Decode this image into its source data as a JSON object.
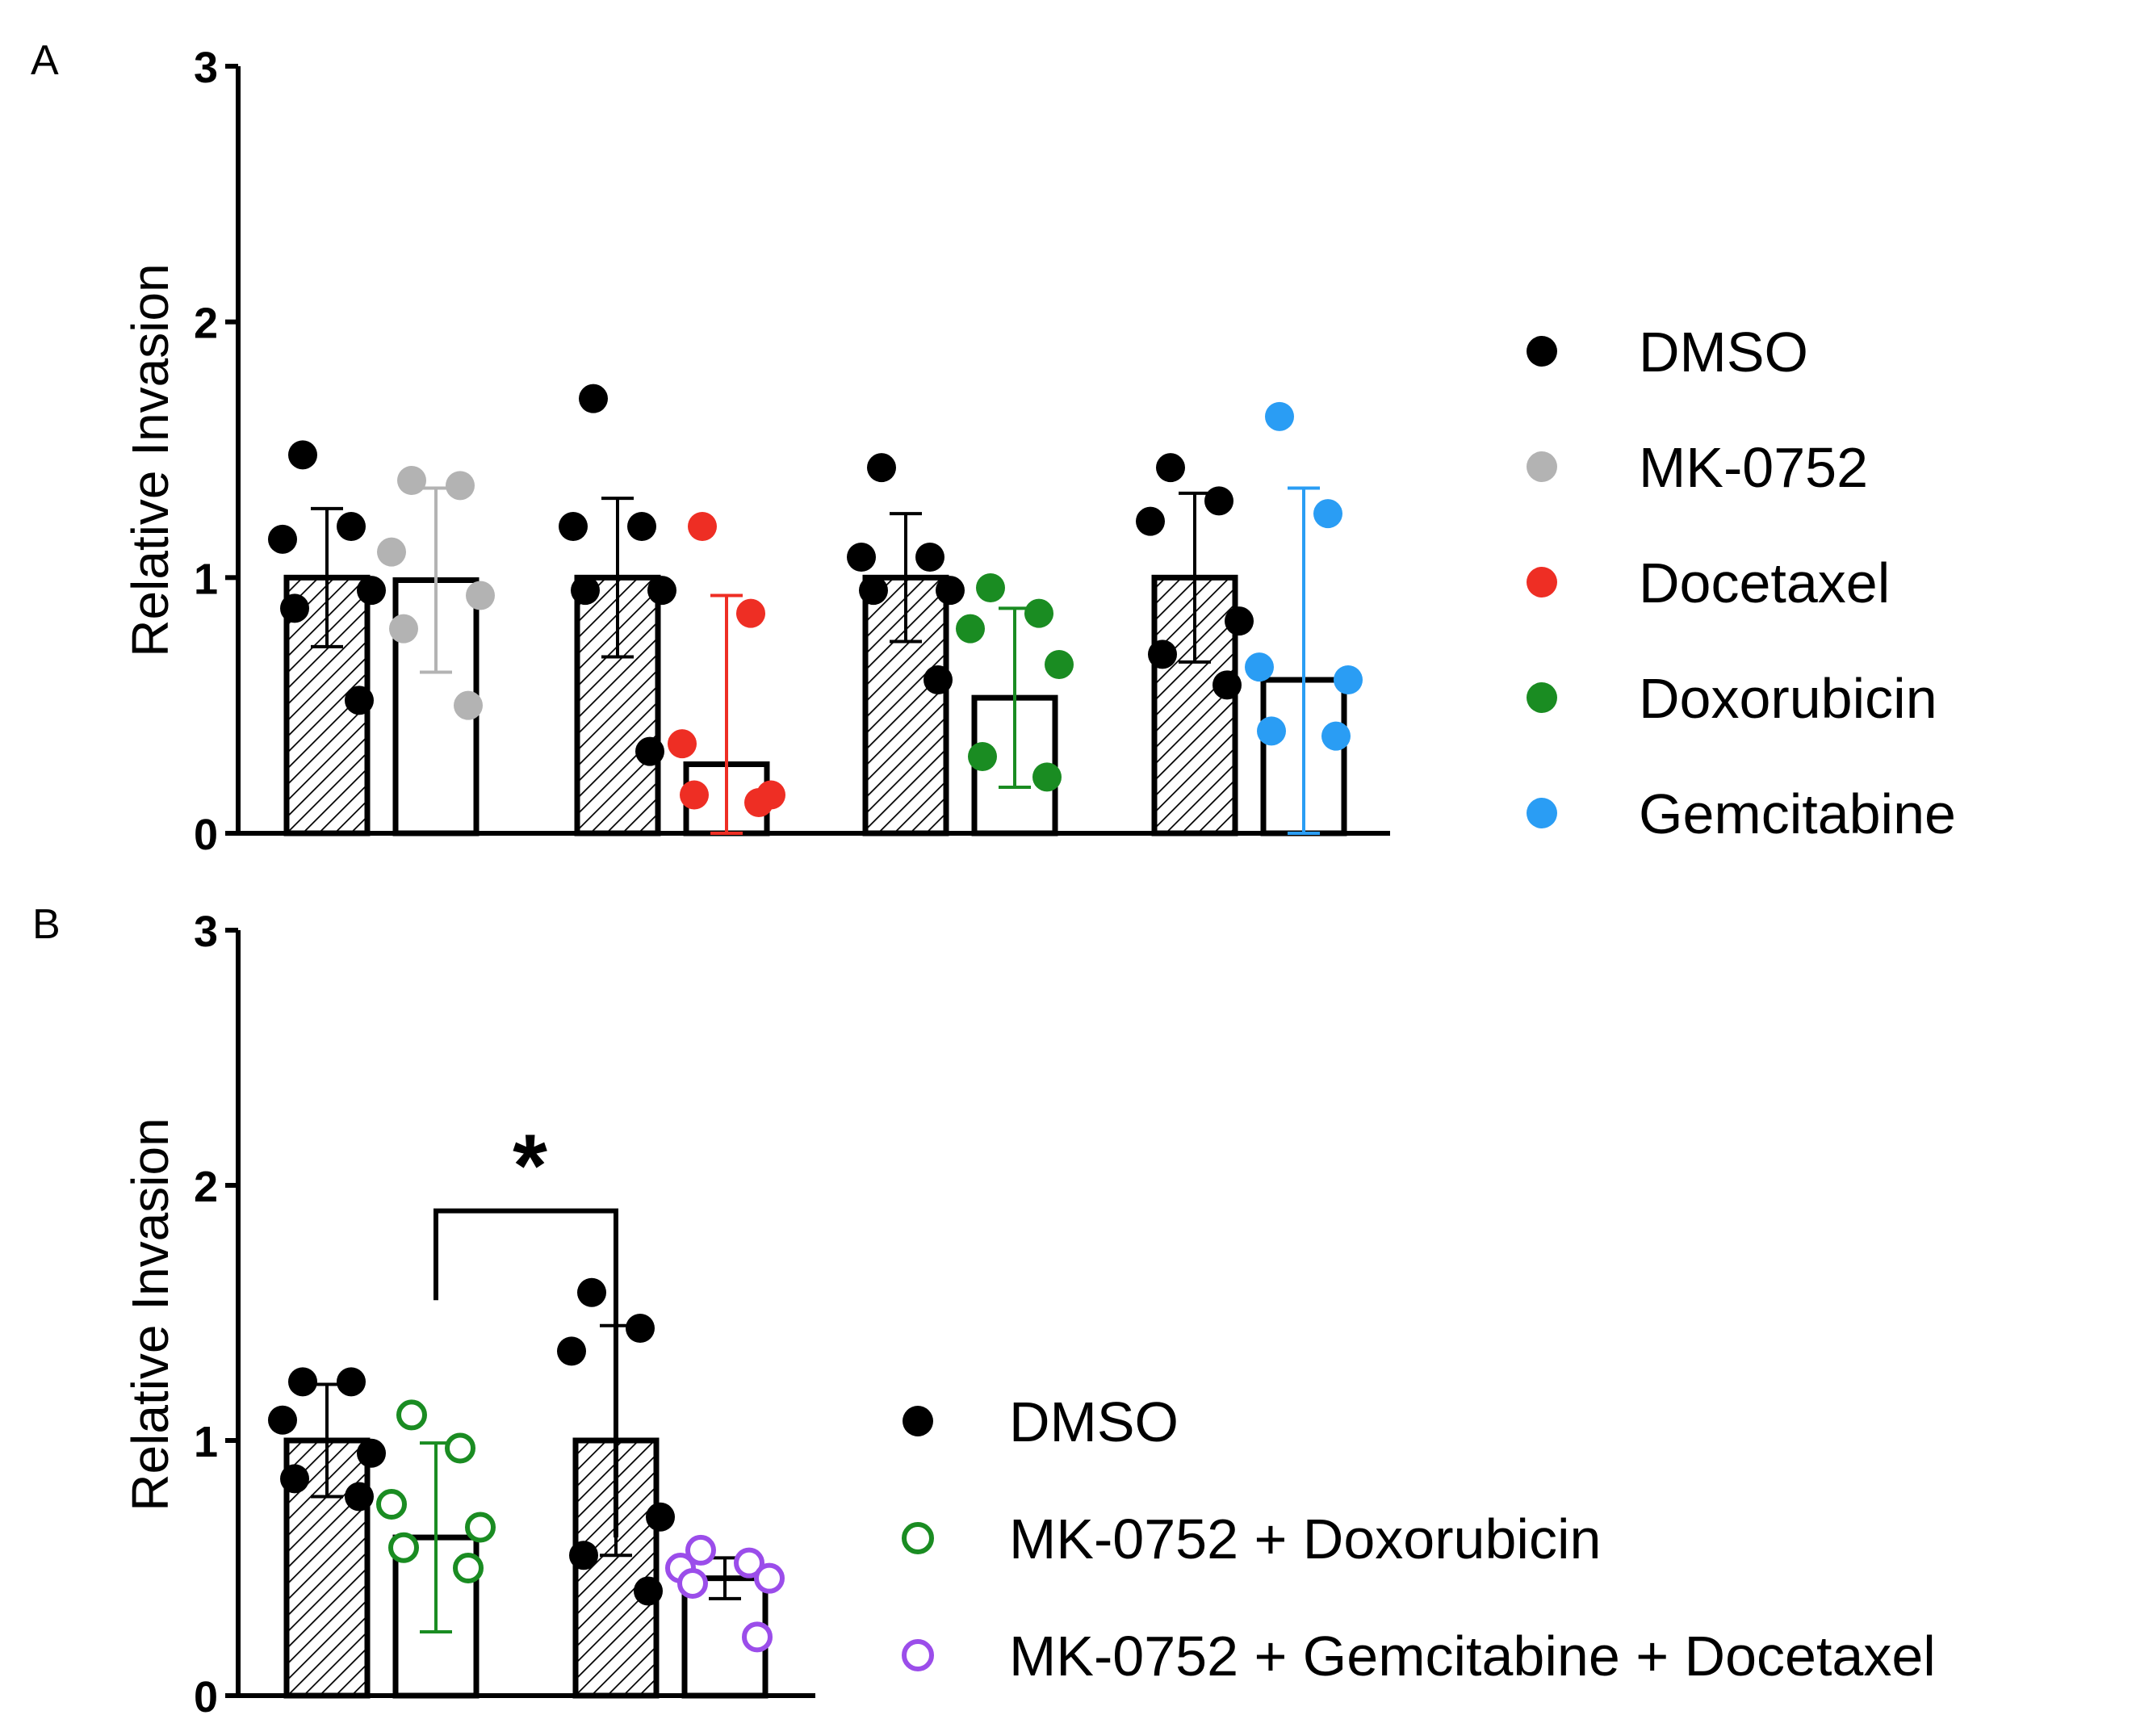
{
  "chart_data": [
    {
      "type": "bar",
      "panel": "A",
      "ylabel": "Relative Invasion",
      "xlabel": "",
      "ylim": [
        0,
        3
      ],
      "yticks": [
        0,
        1,
        2,
        3
      ],
      "legend_position": "right",
      "legend": [
        {
          "label": "DMSO",
          "color": "#000000",
          "marker": "filled-circle"
        },
        {
          "label": "MK-0752",
          "color": "#b3b3b3",
          "marker": "filled-circle"
        },
        {
          "label": "Docetaxel",
          "color": "#ee2e24",
          "marker": "filled-circle"
        },
        {
          "label": "Doxorubicin",
          "color": "#1a8c22",
          "marker": "filled-circle"
        },
        {
          "label": "Gemcitabine",
          "color": "#2a9df4",
          "marker": "filled-circle"
        }
      ],
      "bars": [
        {
          "series": "DMSO",
          "group": 1,
          "mean": 1.0,
          "sd": 0.27,
          "fill": "hatched",
          "color": "#000000",
          "points": [
            1.48,
            1.2,
            1.15,
            0.95,
            0.88,
            0.52
          ]
        },
        {
          "series": "MK-0752",
          "group": 1,
          "mean": 0.99,
          "sd": 0.36,
          "fill": "open",
          "color": "#b3b3b3",
          "points": [
            1.38,
            1.36,
            1.1,
            0.93,
            0.8,
            0.5
          ]
        },
        {
          "series": "DMSO",
          "group": 2,
          "mean": 1.0,
          "sd": 0.31,
          "fill": "hatched",
          "color": "#000000",
          "points": [
            1.7,
            1.2,
            1.2,
            0.95,
            0.95,
            0.32
          ]
        },
        {
          "series": "Docetaxel",
          "group": 2,
          "mean": 0.27,
          "sd": 0.66,
          "fill": "open",
          "color": "#ee2e24",
          "points": [
            1.2,
            0.86,
            0.35,
            0.15,
            0.15,
            0.12
          ]
        },
        {
          "series": "DMSO",
          "group": 3,
          "mean": 1.0,
          "sd": 0.25,
          "fill": "hatched",
          "color": "#000000",
          "points": [
            1.43,
            1.08,
            1.08,
            0.95,
            0.95,
            0.6
          ]
        },
        {
          "series": "Doxorubicin",
          "group": 3,
          "mean": 0.53,
          "sd": 0.35,
          "fill": "open",
          "color": "#1a8c22",
          "points": [
            0.96,
            0.86,
            0.8,
            0.66,
            0.3,
            0.22
          ]
        },
        {
          "series": "DMSO",
          "group": 4,
          "mean": 1.0,
          "sd": 0.33,
          "fill": "hatched",
          "color": "#000000",
          "points": [
            1.43,
            1.3,
            1.22,
            0.83,
            0.7,
            0.58
          ]
        },
        {
          "series": "Gemcitabine",
          "group": 4,
          "mean": 0.6,
          "sd": 0.75,
          "fill": "open",
          "color": "#2a9df4",
          "points": [
            1.63,
            1.25,
            0.65,
            0.6,
            0.4,
            0.38
          ]
        }
      ]
    },
    {
      "type": "bar",
      "panel": "B",
      "ylabel": "Relative Invasion",
      "xlabel": "",
      "ylim": [
        0,
        3
      ],
      "yticks": [
        0,
        1,
        2,
        3
      ],
      "legend_position": "right",
      "legend": [
        {
          "label": "DMSO",
          "color": "#000000",
          "marker": "filled-circle"
        },
        {
          "label": "MK-0752 + Doxorubicin",
          "color": "#1a8c22",
          "marker": "open-circle"
        },
        {
          "label": "MK-0752 + Gemcitabine + Docetaxel",
          "color": "#9b4dea",
          "marker": "open-circle"
        }
      ],
      "bars": [
        {
          "series": "DMSO",
          "group": 1,
          "mean": 1.0,
          "sd": 0.22,
          "fill": "hatched",
          "color": "#000000",
          "points": [
            1.23,
            1.23,
            1.08,
            0.95,
            0.85,
            0.78
          ]
        },
        {
          "series": "MK-0752 + Doxorubicin",
          "group": 1,
          "mean": 0.62,
          "sd": 0.37,
          "fill": "open",
          "color": "#1a8c22",
          "points": [
            1.1,
            0.97,
            0.75,
            0.66,
            0.58,
            0.5
          ]
        },
        {
          "series": "DMSO",
          "group": 2,
          "mean": 1.0,
          "sd": 0.45,
          "fill": "hatched",
          "color": "#000000",
          "points": [
            1.58,
            1.44,
            1.35,
            0.7,
            0.55,
            0.41
          ]
        },
        {
          "series": "MK-0752 + Gemcitabine + Docetaxel",
          "group": 2,
          "mean": 0.46,
          "sd": 0.08,
          "fill": "open",
          "color": "#9b4dea",
          "points": [
            0.57,
            0.52,
            0.5,
            0.46,
            0.44,
            0.23
          ]
        }
      ],
      "annotations": [
        {
          "text": "*",
          "between": [
            2,
            3
          ],
          "y": 1.9
        }
      ]
    }
  ]
}
